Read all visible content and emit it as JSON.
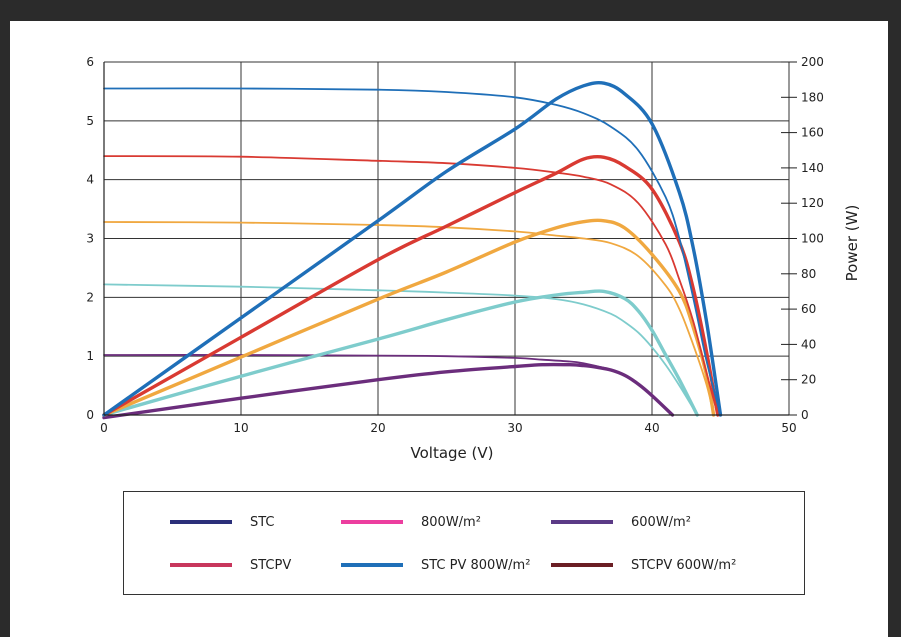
{
  "chart_data": {
    "type": "line",
    "title": "",
    "xlabel": "Voltage (V)",
    "ylabel": "",
    "y2label": "Power (W)",
    "xlim": [
      0,
      50
    ],
    "ylim": [
      0,
      6
    ],
    "y2lim": [
      0,
      200
    ],
    "xticks": [
      "0",
      "10",
      "20",
      "30",
      "40",
      "50"
    ],
    "yticks": [
      "0",
      "1",
      "2",
      "3",
      "4",
      "5",
      "6"
    ],
    "y2ticks": [
      "0",
      "20",
      "40",
      "60",
      "80",
      "100",
      "120",
      "140",
      "160",
      "180",
      "200"
    ],
    "grid": true,
    "legend_position": "bottom",
    "series": [
      {
        "color": "#1f6fb8",
        "kind": "current",
        "x": [
          0,
          10,
          20,
          25,
          30,
          33,
          35,
          37,
          39,
          41,
          42,
          43,
          44,
          45
        ],
        "y": [
          5.55,
          5.55,
          5.53,
          5.49,
          5.4,
          5.27,
          5.13,
          4.9,
          4.5,
          3.7,
          3.0,
          2.0,
          0.9,
          0
        ]
      },
      {
        "color": "#1f6fb8",
        "kind": "power",
        "x": [
          0,
          10,
          20,
          25,
          30,
          33,
          35,
          36.5,
          38,
          40,
          42,
          43,
          44,
          45
        ],
        "y": [
          0,
          55,
          110,
          138,
          162,
          179,
          186.5,
          188,
          182,
          165,
          126,
          95,
          52,
          0
        ]
      },
      {
        "color": "#d93a32",
        "kind": "current",
        "x": [
          0,
          10,
          20,
          25,
          30,
          33,
          35,
          37,
          39,
          41,
          42,
          43,
          44,
          44.8
        ],
        "y": [
          4.4,
          4.39,
          4.32,
          4.28,
          4.2,
          4.12,
          4.05,
          3.92,
          3.6,
          2.9,
          2.3,
          1.6,
          0.7,
          0
        ]
      },
      {
        "color": "#d93a32",
        "kind": "power",
        "x": [
          0,
          10,
          20,
          25,
          30,
          33,
          35,
          36.5,
          38,
          40,
          42,
          43,
          44,
          44.8
        ],
        "y": [
          0,
          44,
          88,
          107,
          126,
          137,
          145,
          146,
          141,
          128,
          98,
          72,
          35,
          0
        ]
      },
      {
        "color": "#f0a840",
        "kind": "current",
        "x": [
          0,
          10,
          20,
          25,
          30,
          33,
          35,
          37,
          39,
          41,
          42,
          43,
          44,
          44.5
        ],
        "y": [
          3.28,
          3.27,
          3.23,
          3.19,
          3.12,
          3.05,
          3.0,
          2.92,
          2.7,
          2.2,
          1.8,
          1.2,
          0.5,
          0
        ]
      },
      {
        "color": "#f0a840",
        "kind": "power",
        "x": [
          0,
          10,
          20,
          25,
          30,
          33,
          35,
          36.5,
          38,
          40,
          42,
          43,
          44,
          44.5
        ],
        "y": [
          0,
          32.8,
          65.6,
          81,
          98,
          106,
          109.5,
          110,
          106,
          91,
          70,
          50,
          22,
          0
        ]
      },
      {
        "color": "#7ecccc",
        "kind": "current",
        "x": [
          0,
          10,
          20,
          25,
          30,
          33,
          35,
          37,
          38,
          39,
          40,
          41,
          42,
          43.3
        ],
        "y": [
          2.22,
          2.18,
          2.12,
          2.08,
          2.03,
          1.97,
          1.88,
          1.72,
          1.58,
          1.4,
          1.15,
          0.85,
          0.5,
          0
        ]
      },
      {
        "color": "#7ecccc",
        "kind": "power",
        "x": [
          0,
          10,
          20,
          25,
          30,
          33,
          35,
          36.5,
          38,
          39,
          40,
          41,
          42,
          43.3
        ],
        "y": [
          0,
          22,
          43,
          54,
          64,
          68,
          69.5,
          70,
          66,
          59,
          48,
          34,
          20,
          0
        ]
      },
      {
        "color": "#6b2d7c",
        "kind": "current",
        "x": [
          0,
          10,
          20,
          25,
          30,
          32,
          34,
          35,
          36,
          37,
          38,
          39,
          40,
          41.5
        ],
        "y": [
          1.02,
          1.02,
          1.01,
          1.0,
          0.97,
          0.94,
          0.91,
          0.88,
          0.83,
          0.77,
          0.68,
          0.53,
          0.33,
          0
        ]
      },
      {
        "color": "#6b2d7c",
        "kind": "power",
        "x": [
          0,
          10,
          20,
          25,
          30,
          32,
          34,
          35,
          36,
          37,
          38,
          39,
          40,
          41.5
        ],
        "y": [
          -1.5,
          9.5,
          20,
          24.5,
          27.5,
          28.5,
          28.5,
          28,
          27,
          25.5,
          22.5,
          17.5,
          11,
          0
        ]
      }
    ]
  },
  "legend": {
    "items": [
      {
        "label": "STC",
        "color": "#2b2f7a"
      },
      {
        "label": "800W/m²",
        "color": "#ec3e9f"
      },
      {
        "label": "600W/m²",
        "color": "#5b3a86"
      },
      {
        "label": "STCPV",
        "color": "#c8365c"
      },
      {
        "label": "STC PV 800W/m²",
        "color": "#1f6fb8"
      },
      {
        "label": "STCPV 600W/m²",
        "color": "#6b1e24"
      }
    ]
  }
}
